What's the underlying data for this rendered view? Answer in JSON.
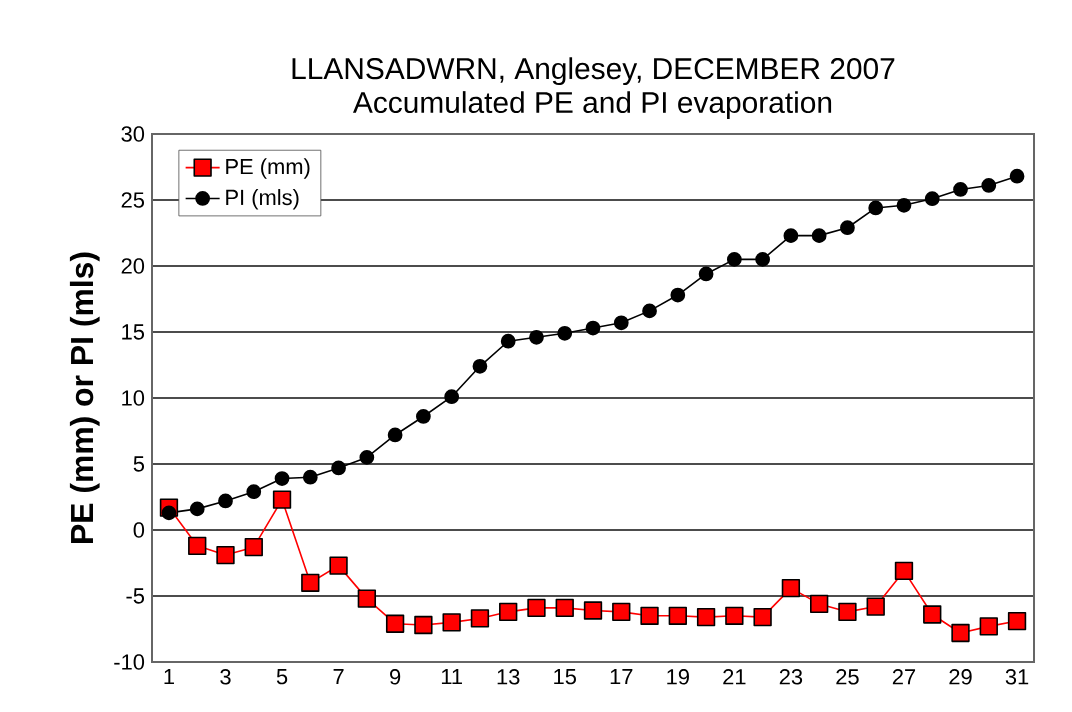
{
  "chart_data": {
    "type": "line",
    "title": "LLANSADWRN, Anglesey, DECEMBER 2007",
    "subtitle": "Accumulated PE and PI evaporation",
    "ylabel": "PE (mm) or PI (mls)",
    "x": [
      1,
      2,
      3,
      4,
      5,
      6,
      7,
      8,
      9,
      10,
      11,
      12,
      13,
      14,
      15,
      16,
      17,
      18,
      19,
      20,
      21,
      22,
      23,
      24,
      25,
      26,
      27,
      28,
      29,
      30,
      31
    ],
    "series": [
      {
        "name": "PE (mm)",
        "color": "#ff0000",
        "marker": "square",
        "values": [
          1.7,
          -1.2,
          -1.9,
          -1.3,
          2.3,
          -4.0,
          -2.7,
          -5.2,
          -7.1,
          -7.2,
          -7.0,
          -6.7,
          -6.2,
          -5.9,
          -5.9,
          -6.1,
          -6.2,
          -6.5,
          -6.5,
          -6.6,
          -6.5,
          -6.6,
          -4.4,
          -5.6,
          -6.2,
          -5.8,
          -3.1,
          -6.4,
          -7.8,
          -7.3,
          -6.9
        ]
      },
      {
        "name": "PI (mls)",
        "color": "#000000",
        "marker": "circle",
        "values": [
          1.3,
          1.6,
          2.2,
          2.9,
          3.9,
          4.0,
          4.7,
          5.5,
          7.2,
          8.6,
          10.1,
          12.4,
          14.3,
          14.6,
          14.9,
          15.3,
          15.7,
          16.6,
          17.8,
          19.4,
          20.5,
          20.5,
          22.3,
          22.3,
          22.9,
          24.4,
          24.6,
          25.1,
          25.8,
          26.1,
          26.8
        ]
      }
    ],
    "xlim": [
      0.4,
      31.6
    ],
    "xticks": [
      1,
      3,
      5,
      7,
      9,
      11,
      13,
      15,
      17,
      19,
      21,
      23,
      25,
      27,
      29,
      31
    ],
    "ylim": [
      -10,
      30
    ],
    "yticks": [
      -10,
      -5,
      0,
      5,
      10,
      15,
      20,
      25,
      30
    ],
    "grid": "y",
    "legend": "top left",
    "line_style": "solid"
  }
}
